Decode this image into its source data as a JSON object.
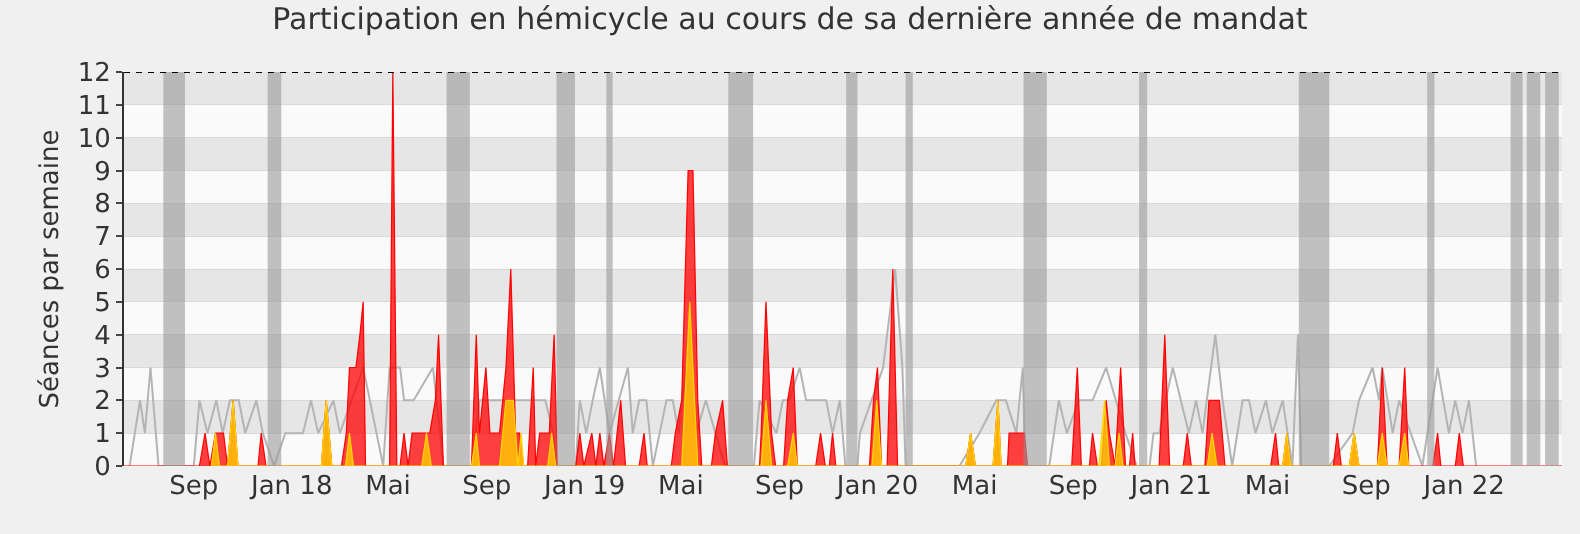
{
  "chart_data": {
    "type": "area",
    "title": "Participation en hémicycle au cours de sa dernière année de mandat",
    "ylabel": "Séances par semaine",
    "xlim": [
      "2017-06-06",
      "2022-05-03"
    ],
    "ylim": [
      0,
      12
    ],
    "yticks": [
      0,
      1,
      2,
      3,
      4,
      5,
      6,
      7,
      8,
      9,
      10,
      11,
      12
    ],
    "xticks": [
      {
        "value": "2017-09-01",
        "label": "Sep"
      },
      {
        "value": "2018-01-01",
        "label": "Jan 18"
      },
      {
        "value": "2018-05-01",
        "label": "Mai"
      },
      {
        "value": "2018-09-01",
        "label": "Sep"
      },
      {
        "value": "2019-01-01",
        "label": "Jan 19"
      },
      {
        "value": "2019-05-01",
        "label": "Mai"
      },
      {
        "value": "2019-09-01",
        "label": "Sep"
      },
      {
        "value": "2020-01-01",
        "label": "Jan 20"
      },
      {
        "value": "2020-05-01",
        "label": "Mai"
      },
      {
        "value": "2020-09-01",
        "label": "Sep"
      },
      {
        "value": "2021-01-01",
        "label": "Jan 21"
      },
      {
        "value": "2021-05-01",
        "label": "Mai"
      },
      {
        "value": "2021-09-01",
        "label": "Sep"
      },
      {
        "value": "2022-01-01",
        "label": "Jan 22"
      }
    ],
    "grid": "y",
    "marker": "none",
    "line_style": "solid",
    "series": [
      {
        "type": "line",
        "color": "#b4b4b4",
        "x": [
          "2017-06-13",
          "2017-06-26",
          "2017-07-02",
          "2017-07-09",
          "2017-07-19",
          "2017-09-01",
          "2017-09-08",
          "2017-09-18",
          "2017-09-29",
          "2017-10-07",
          "2017-10-16",
          "2017-10-27",
          "2017-11-04",
          "2017-11-18",
          "2017-11-26",
          "2017-12-10",
          "2017-12-24",
          "2018-01-15",
          "2018-01-25",
          "2018-02-03",
          "2018-02-22",
          "2018-03-02",
          "2018-03-31",
          "2018-04-25",
          "2018-05-03",
          "2018-05-16",
          "2018-05-21",
          "2018-06-02",
          "2018-06-26",
          "2018-07-05",
          "2018-07-09",
          "2018-08-13",
          "2018-08-23",
          "2018-11-13",
          "2018-11-23",
          "2018-11-26",
          "2018-12-21",
          "2018-12-26",
          "2019-01-03",
          "2019-01-11",
          "2019-01-20",
          "2019-02-01",
          "2019-02-24",
          "2019-03-02",
          "2019-03-10",
          "2019-03-19",
          "2019-03-27",
          "2019-04-13",
          "2019-04-21",
          "2019-04-28",
          "2019-05-07",
          "2019-05-20",
          "2019-06-01",
          "2019-06-25",
          "2019-07-31",
          "2019-08-07",
          "2019-08-28",
          "2019-09-05",
          "2019-09-13",
          "2019-09-26",
          "2019-10-04",
          "2019-10-29",
          "2019-11-06",
          "2019-11-15",
          "2019-11-22",
          "2019-12-07",
          "2019-12-10",
          "2020-01-08",
          "2020-01-23",
          "2020-02-01",
          "2020-02-05",
          "2020-04-12",
          "2020-05-07",
          "2020-05-28",
          "2020-06-09",
          "2020-06-22",
          "2020-06-30",
          "2020-07-03",
          "2020-08-02",
          "2020-08-14",
          "2020-08-24",
          "2020-09-08",
          "2020-09-25",
          "2020-10-12",
          "2020-10-24",
          "2020-11-05",
          "2020-11-19",
          "2020-12-05",
          "2020-12-10",
          "2020-12-17",
          "2020-12-25",
          "2021-01-03",
          "2021-01-23",
          "2021-02-01",
          "2021-02-09",
          "2021-02-25",
          "2021-03-06",
          "2021-03-18",
          "2021-03-31",
          "2021-04-08",
          "2021-04-16",
          "2021-04-29",
          "2021-05-07",
          "2021-05-20",
          "2021-06-01",
          "2021-06-08",
          "2021-06-12",
          "2021-07-17",
          "2021-08-15",
          "2021-08-23",
          "2021-09-09",
          "2021-09-17",
          "2021-09-21",
          "2021-10-04",
          "2021-10-12",
          "2021-11-10",
          "2021-11-29",
          "2021-12-13",
          "2021-12-21",
          "2021-12-30",
          "2022-01-07",
          "2022-01-16"
        ],
        "values": [
          0,
          2,
          1,
          3,
          0,
          0,
          2,
          1,
          2,
          1,
          2,
          2,
          1,
          2,
          1,
          0,
          1,
          1,
          2,
          1,
          2,
          1,
          3,
          0,
          3,
          3,
          2,
          2,
          3,
          1,
          0,
          0,
          2,
          2,
          1,
          0,
          0,
          2,
          1,
          2,
          3,
          1,
          3,
          1,
          2,
          2,
          0,
          2,
          2,
          1,
          3,
          1,
          2,
          0,
          0,
          2,
          1,
          2,
          2,
          3,
          2,
          2,
          1,
          2,
          0,
          0,
          1,
          3,
          6,
          3,
          0,
          0,
          1,
          2,
          2,
          1,
          3,
          0,
          0,
          2,
          1,
          2,
          2,
          3,
          2,
          1,
          0,
          0,
          1,
          1,
          2,
          3,
          1,
          2,
          1,
          4,
          2,
          0,
          2,
          2,
          1,
          2,
          1,
          2,
          0,
          4,
          0,
          0,
          1,
          2,
          3,
          2,
          3,
          1,
          2,
          0,
          3,
          1,
          2,
          1,
          2,
          0
        ]
      },
      {
        "type": "area",
        "color": "#ff0000",
        "x": [
          "2017-06-06",
          "2017-09-08",
          "2017-09-15",
          "2017-09-21",
          "2017-09-28",
          "2017-10-08",
          "2017-10-13",
          "2017-10-20",
          "2017-10-26",
          "2017-11-20",
          "2017-11-24",
          "2017-11-30",
          "2018-02-07",
          "2018-02-13",
          "2018-02-20",
          "2018-03-04",
          "2018-03-10",
          "2018-03-14",
          "2018-03-22",
          "2018-03-27",
          "2018-03-31",
          "2018-04-03",
          "2018-05-03",
          "2018-05-07",
          "2018-05-12",
          "2018-05-16",
          "2018-05-21",
          "2018-05-26",
          "2018-05-31",
          "2018-06-22",
          "2018-06-29",
          "2018-07-03",
          "2018-07-09",
          "2018-08-13",
          "2018-08-19",
          "2018-08-23",
          "2018-08-31",
          "2018-09-05",
          "2018-09-17",
          "2018-09-25",
          "2018-10-01",
          "2018-10-07",
          "2018-10-12",
          "2018-10-17",
          "2018-10-22",
          "2018-10-29",
          "2018-11-01",
          "2018-11-06",
          "2018-11-18",
          "2018-11-24",
          "2018-11-28",
          "2018-12-21",
          "2018-12-26",
          "2018-12-31",
          "2019-01-10",
          "2019-01-15",
          "2019-01-20",
          "2019-01-25",
          "2019-02-01",
          "2019-02-06",
          "2019-02-15",
          "2019-02-21",
          "2019-03-10",
          "2019-03-16",
          "2019-03-20",
          "2019-04-19",
          "2019-04-24",
          "2019-05-02",
          "2019-05-10",
          "2019-05-16",
          "2019-05-22",
          "2019-05-27",
          "2019-06-08",
          "2019-06-13",
          "2019-06-22",
          "2019-06-28",
          "2019-08-07",
          "2019-08-09",
          "2019-08-15",
          "2019-08-22",
          "2019-08-27",
          "2019-09-06",
          "2019-09-11",
          "2019-09-18",
          "2019-09-23",
          "2019-10-16",
          "2019-10-22",
          "2019-10-28",
          "2019-11-02",
          "2019-11-06",
          "2019-11-10",
          "2019-12-22",
          "2019-12-27",
          "2020-01-01",
          "2020-01-06",
          "2020-01-13",
          "2020-01-20",
          "2020-01-26",
          "2020-04-20",
          "2020-04-26",
          "2020-05-02",
          "2020-05-24",
          "2020-05-30",
          "2020-06-03",
          "2020-06-11",
          "2020-06-13",
          "2020-07-02",
          "2020-07-06",
          "2020-08-30",
          "2020-09-06",
          "2020-09-11",
          "2020-09-21",
          "2020-09-25",
          "2020-10-01",
          "2020-10-06",
          "2020-10-12",
          "2020-10-16",
          "2020-10-23",
          "2020-10-30",
          "2020-11-05",
          "2020-11-10",
          "2020-11-14",
          "2020-11-17",
          "2020-12-17",
          "2020-12-24",
          "2020-12-30",
          "2021-01-16",
          "2021-01-21",
          "2021-01-26",
          "2021-02-12",
          "2021-02-17",
          "2021-03-02",
          "2021-03-09",
          "2021-05-05",
          "2021-05-11",
          "2021-05-15",
          "2021-05-20",
          "2021-05-25",
          "2021-05-30",
          "2021-07-22",
          "2021-07-27",
          "2021-08-01",
          "2021-08-11",
          "2021-08-17",
          "2021-08-23",
          "2021-09-15",
          "2021-09-21",
          "2021-09-27",
          "2021-10-12",
          "2021-10-19",
          "2021-10-24",
          "2021-11-23",
          "2021-11-29",
          "2021-12-03",
          "2021-12-21",
          "2021-12-26",
          "2021-12-31",
          "2022-05-03"
        ],
        "values": [
          0,
          0,
          1,
          0,
          1,
          1,
          0,
          2,
          0,
          0,
          1,
          0,
          0,
          2,
          0,
          0,
          1,
          3,
          3,
          4,
          5,
          0,
          0,
          12,
          0,
          0,
          1,
          0,
          1,
          1,
          2,
          4,
          0,
          0,
          4,
          1,
          3,
          1,
          1,
          3,
          6,
          1,
          1,
          0,
          0,
          3,
          0,
          1,
          1,
          4,
          0,
          0,
          1,
          0,
          1,
          0,
          1,
          0,
          1,
          0,
          2,
          0,
          0,
          1,
          0,
          0,
          1,
          2,
          9,
          9,
          2,
          0,
          0,
          1,
          2,
          0,
          0,
          1,
          5,
          1,
          0,
          0,
          2,
          3,
          0,
          0,
          1,
          0,
          0,
          1,
          0,
          0,
          2,
          3,
          0,
          0,
          6,
          0,
          0,
          1,
          0,
          0,
          2,
          0,
          0,
          1,
          1,
          0,
          0,
          3,
          0,
          0,
          1,
          0,
          0,
          2,
          1,
          0,
          3,
          0,
          0,
          1,
          0,
          0,
          4,
          0,
          0,
          1,
          0,
          0,
          2,
          2,
          0,
          0,
          1,
          0,
          0,
          1,
          0,
          0,
          1,
          0,
          0,
          1,
          0,
          0,
          3,
          0,
          0,
          3,
          0,
          0,
          1,
          0,
          0,
          1,
          0,
          0
        ]
      },
      {
        "type": "area",
        "color": "#ffd700",
        "x": [
          "2017-09-23",
          "2017-09-28",
          "2017-10-03",
          "2017-10-13",
          "2017-10-20",
          "2017-10-26",
          "2018-02-07",
          "2018-02-13",
          "2018-02-20",
          "2018-03-09",
          "2018-03-14",
          "2018-03-19",
          "2018-06-12",
          "2018-06-18",
          "2018-06-24",
          "2018-08-13",
          "2018-08-19",
          "2018-08-23",
          "2018-09-17",
          "2018-09-25",
          "2018-10-04",
          "2018-10-10",
          "2018-10-14",
          "2018-10-17",
          "2018-11-16",
          "2018-11-21",
          "2018-11-26",
          "2019-05-02",
          "2019-05-12",
          "2019-05-22",
          "2019-08-09",
          "2019-08-15",
          "2019-08-22",
          "2019-09-11",
          "2019-09-18",
          "2019-09-23",
          "2019-12-25",
          "2019-12-31",
          "2020-01-06",
          "2020-04-20",
          "2020-04-26",
          "2020-05-02",
          "2020-05-24",
          "2020-05-30",
          "2020-06-03",
          "2020-10-03",
          "2020-10-10",
          "2020-10-16",
          "2020-10-23",
          "2020-10-28",
          "2020-11-02",
          "2021-02-15",
          "2021-02-21",
          "2021-02-27",
          "2021-05-20",
          "2021-05-25",
          "2021-05-30",
          "2021-08-11",
          "2021-08-17",
          "2021-08-23",
          "2021-09-15",
          "2021-09-21",
          "2021-09-27",
          "2021-10-12",
          "2021-10-19",
          "2021-10-24"
        ],
        "values": [
          0,
          1,
          0,
          0,
          2,
          0,
          0,
          2,
          0,
          0,
          1,
          0,
          0,
          1,
          0,
          0,
          1,
          0,
          0,
          2,
          2,
          0,
          1,
          0,
          0,
          1,
          0,
          0,
          5,
          0,
          0,
          2,
          0,
          0,
          1,
          0,
          0,
          2,
          0,
          0,
          1,
          0,
          0,
          2,
          0,
          0,
          2,
          0,
          0,
          1,
          0,
          0,
          1,
          0,
          0,
          1,
          0,
          0,
          1,
          0,
          0,
          1,
          0,
          0,
          1,
          0
        ]
      }
    ],
    "bands": [
      {
        "axis": "x",
        "from": "2017-07-25",
        "to": "2017-08-21",
        "color": "#999999"
      },
      {
        "axis": "x",
        "from": "2017-12-02",
        "to": "2017-12-19",
        "color": "#999999"
      },
      {
        "axis": "x",
        "from": "2018-07-13",
        "to": "2018-08-11",
        "color": "#999999"
      },
      {
        "axis": "x",
        "from": "2018-11-27",
        "to": "2018-12-20",
        "color": "#999999"
      },
      {
        "axis": "x",
        "from": "2019-01-28",
        "to": "2019-02-05",
        "color": "#999999"
      },
      {
        "axis": "x",
        "from": "2019-06-29",
        "to": "2019-07-30",
        "color": "#999999"
      },
      {
        "axis": "x",
        "from": "2019-11-23",
        "to": "2019-12-07",
        "color": "#999999"
      },
      {
        "axis": "x",
        "from": "2020-02-05",
        "to": "2020-02-14",
        "color": "#999999"
      },
      {
        "axis": "x",
        "from": "2020-07-01",
        "to": "2020-07-30",
        "color": "#999999"
      },
      {
        "axis": "x",
        "from": "2020-11-22",
        "to": "2020-12-02",
        "color": "#999999"
      },
      {
        "axis": "x",
        "from": "2021-06-09",
        "to": "2021-07-17",
        "color": "#999999"
      },
      {
        "axis": "x",
        "from": "2021-11-16",
        "to": "2021-11-25",
        "color": "#999999"
      },
      {
        "axis": "x",
        "from": "2022-02-28",
        "to": "2022-03-15",
        "color": "#999999"
      },
      {
        "axis": "x",
        "from": "2022-03-20",
        "to": "2022-04-06",
        "color": "#999999"
      },
      {
        "axis": "x",
        "from": "2022-04-12",
        "to": "2022-04-29",
        "color": "#999999"
      }
    ],
    "ref_lines": [
      {
        "axis": "y",
        "value": 12,
        "color": "#000000",
        "line_style": "dotted"
      }
    ]
  }
}
